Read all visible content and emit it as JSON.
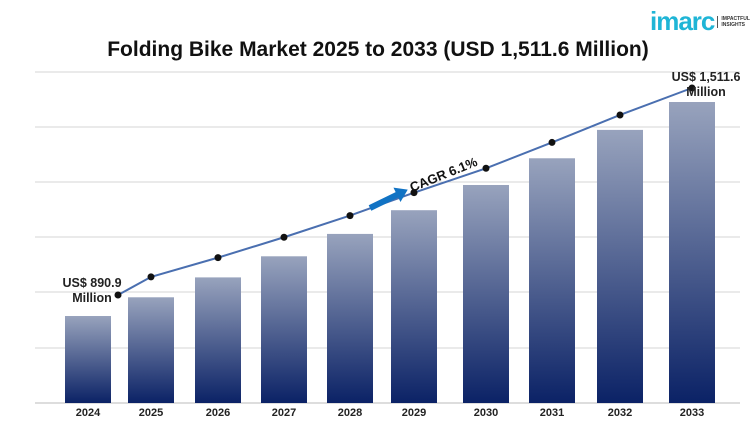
{
  "logo": {
    "brand": "imarc",
    "tagline": "IMPACTFUL INSIGHTS"
  },
  "chart_data": {
    "type": "bar",
    "title": "Folding Bike Market 2025 to 2033 (USD 1,511.6 Million)",
    "xlabel": "",
    "ylabel": "",
    "categories": [
      "2024",
      "2025",
      "2026",
      "2027",
      "2028",
      "2029",
      "2030",
      "2031",
      "2032",
      "2033"
    ],
    "values": [
      890.9,
      945.2,
      1002.9,
      1064.1,
      1129.0,
      1197.8,
      1270.9,
      1348.4,
      1430.7,
      1511.6
    ],
    "trend_line": true,
    "grid": true,
    "annotations": {
      "start": [
        "US$ 890.9",
        "Million"
      ],
      "end": [
        "US$ 1,511.6",
        "Million"
      ],
      "cagr": "CAGR 6.1%"
    },
    "colors": {
      "bar_top": "#98a3bd",
      "bar_bottom": "#0b2266",
      "line": "#4a6fb0",
      "arrow": "#1173c4",
      "grid": "#d6d6d6"
    }
  }
}
